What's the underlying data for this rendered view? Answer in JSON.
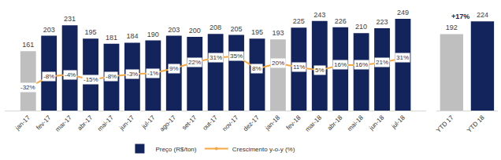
{
  "chart_data": [
    {
      "type": "bar",
      "categories": [
        "jan-17",
        "fev-17",
        "mar-17",
        "abr-17",
        "mai-17",
        "jun-17",
        "jul-17",
        "ago-17",
        "set-17",
        "out-17",
        "nov-17",
        "dez-17",
        "jan-18",
        "fev-18",
        "mar-18",
        "abr-18",
        "mai-18",
        "jun-18",
        "jul-18"
      ],
      "series": [
        {
          "name": "Preço (R$/ton)",
          "type": "bar",
          "color": "#13235b",
          "colors": [
            "#bfbfbf",
            "#13235b",
            "#13235b",
            "#13235b",
            "#13235b",
            "#13235b",
            "#13235b",
            "#13235b",
            "#13235b",
            "#13235b",
            "#13235b",
            "#13235b",
            "#bfbfbf",
            "#13235b",
            "#13235b",
            "#13235b",
            "#13235b",
            "#13235b",
            "#13235b"
          ],
          "values": [
            161,
            203,
            231,
            195,
            181,
            184,
            190,
            203,
            200,
            208,
            205,
            195,
            193,
            225,
            243,
            226,
            210,
            223,
            249
          ]
        },
        {
          "name": "Crescimento y-o-y (%)",
          "type": "line",
          "color": "#f4a742",
          "axis": "y2",
          "marker": "circle",
          "line_style": "solid",
          "values": [
            -32,
            -8,
            -4,
            -15,
            -8,
            -3,
            -1,
            9,
            22,
            31,
            35,
            8,
            20,
            11,
            5,
            16,
            16,
            21,
            31
          ],
          "value_labels": [
            "-32%",
            "-8%",
            "-4%",
            "-15%",
            "-8%",
            "-3%",
            "-1%",
            "9%",
            "22%",
            "31%",
            "35%",
            "8%",
            "20%",
            "11%",
            "5%",
            "16%",
            "16%",
            "21%",
            "31%"
          ]
        }
      ],
      "ylim": [
        0,
        270
      ],
      "y2lim": [
        -80,
        130
      ],
      "data_labels": true,
      "tick_labels": "x",
      "legend": "bottom",
      "grid": false
    },
    {
      "type": "bar",
      "categories": [
        "YTD 17",
        "YTD 18"
      ],
      "values": [
        192,
        224
      ],
      "colors": [
        "#bfbfbf",
        "#13235b"
      ],
      "ylim": [
        0,
        250
      ],
      "data_labels": true,
      "tick_labels": "x",
      "annotations": [
        "+17%"
      ],
      "grid": false
    }
  ]
}
